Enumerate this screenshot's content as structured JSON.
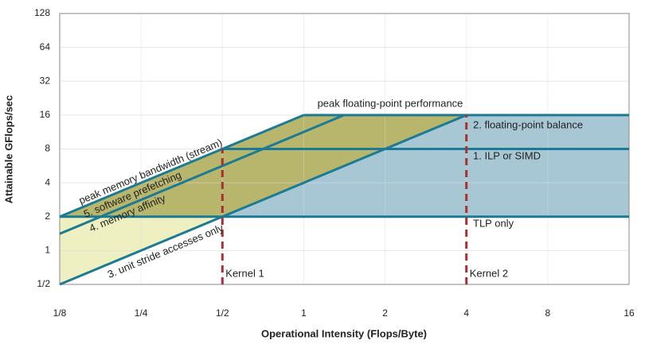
{
  "chart_data": {
    "type": "line",
    "xlabel": "Operational Intensity (Flops/Byte)",
    "ylabel": "Attainable GFlops/sec",
    "log_base": 2,
    "grid": true,
    "xlim": [
      0.125,
      16
    ],
    "ylim": [
      0.5,
      128
    ],
    "xticks": [
      {
        "value": 0.125,
        "label": "1/8"
      },
      {
        "value": 0.25,
        "label": "1/4"
      },
      {
        "value": 0.5,
        "label": "1/2"
      },
      1,
      2,
      4,
      8,
      16
    ],
    "yticks": [
      {
        "value": 0.5,
        "label": "1/2"
      },
      1,
      2,
      4,
      8,
      16,
      32,
      64,
      128
    ],
    "series": [
      {
        "name": "peak floating-point performance",
        "color": "#1b7a94",
        "x": [
          1,
          16
        ],
        "values": [
          16,
          16
        ]
      },
      {
        "name": "peak memory bandwidth (stream)",
        "color": "#1b7a94",
        "x": [
          0.125,
          1
        ],
        "values": [
          2,
          16
        ]
      },
      {
        "name": "5. software prefetching",
        "color": "#1b7a94",
        "x": [
          0.125,
          1.41
        ],
        "values": [
          1.41,
          16
        ]
      },
      {
        "name": "3. unit stride accesses only",
        "color": "#1b7a94",
        "x": [
          0.125,
          4
        ],
        "values": [
          0.5,
          16
        ]
      },
      {
        "name": "1. ILP or SIMD",
        "color": "#1b7a94",
        "x": [
          0.5,
          16
        ],
        "values": [
          8,
          8
        ]
      },
      {
        "name": "TLP only",
        "color": "#1b7a94",
        "x": [
          0.125,
          16
        ],
        "values": [
          2,
          2
        ]
      }
    ],
    "annotations": [
      "4. memory affinity",
      "2. floating-point balance"
    ],
    "kernels": [
      {
        "label": "Kernel 1",
        "x": 0.5,
        "top": 8,
        "color": "#a8302f"
      },
      {
        "label": "Kernel 2",
        "x": 4,
        "top": 16,
        "color": "#a8302f"
      }
    ]
  }
}
